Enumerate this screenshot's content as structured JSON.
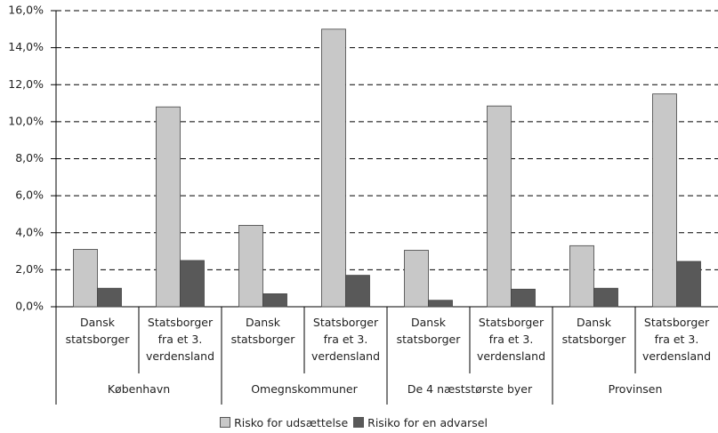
{
  "chart_data": {
    "type": "bar",
    "categories": [
      "Dansk\nstatsborger",
      "Statsborger\nfra et 3.\nverdensland",
      "Dansk\nstatsborger",
      "Statsborger\nfra et 3.\nverdensland",
      "Dansk\nstatsborger",
      "Statsborger\nfra et 3.\nverdensland",
      "Dansk\nstatsborger",
      "Statsborger\nfra et 3.\nverdensland"
    ],
    "groups": [
      "København",
      "Omegnskommuner",
      "De 4 næststørste byer",
      "Provinsen"
    ],
    "series": [
      {
        "name": "Risko for udsættelse",
        "color": "#c8c8c8",
        "values": [
          3.1,
          10.8,
          4.4,
          15.0,
          3.05,
          10.85,
          3.3,
          11.5
        ]
      },
      {
        "name": "Risiko for en advarsel",
        "color": "#595959",
        "values": [
          1.0,
          2.5,
          0.7,
          1.7,
          0.35,
          0.95,
          1.0,
          2.45
        ]
      }
    ],
    "ylim": [
      0,
      16
    ],
    "yticks": [
      {
        "value": 0,
        "label": "0,0%"
      },
      {
        "value": 2,
        "label": "2,0%"
      },
      {
        "value": 4,
        "label": "4,0%"
      },
      {
        "value": 6,
        "label": "6,0%"
      },
      {
        "value": 8,
        "label": "8,0%"
      },
      {
        "value": 10,
        "label": "10,0%"
      },
      {
        "value": 12,
        "label": "12,0%"
      },
      {
        "value": 14,
        "label": "14,0%"
      },
      {
        "value": 16,
        "label": "16,0%"
      }
    ],
    "grid": true
  }
}
